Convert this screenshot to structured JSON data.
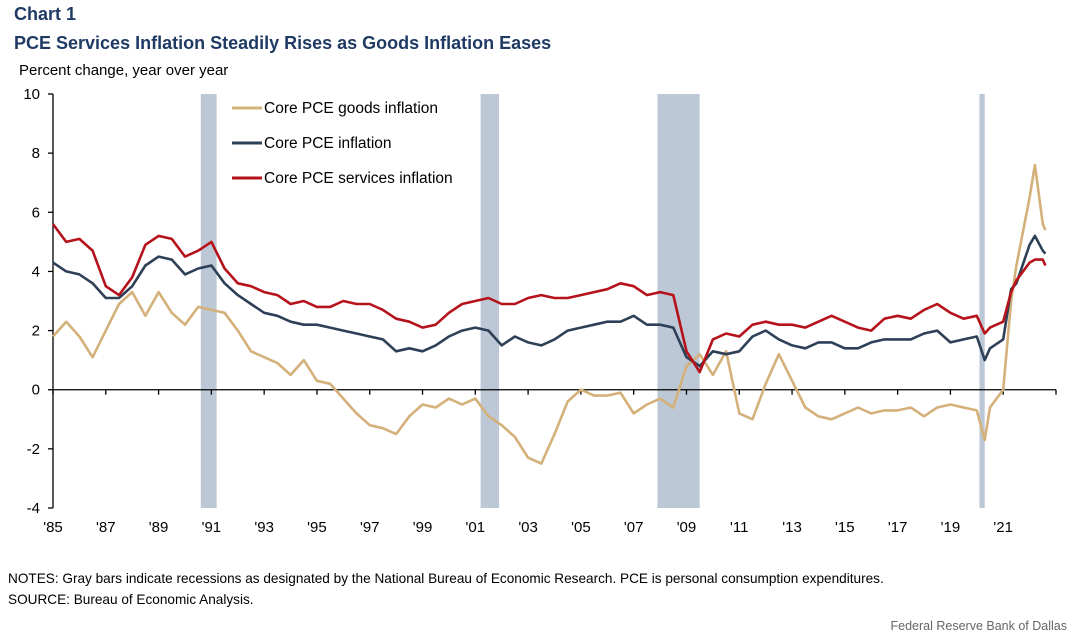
{
  "header": {
    "chart_number": "Chart 1",
    "title": "PCE Services Inflation Steadily Rises as Goods Inflation Eases",
    "unit_label": "Percent change, year over year"
  },
  "footer": {
    "notes": "NOTES: Gray bars indicate recessions as designated by the National Bureau of Economic Research. PCE is personal consumption expenditures.",
    "source": "SOURCE: Bureau of Economic Analysis.",
    "credit": "Federal Reserve Bank of Dallas"
  },
  "chart_data": {
    "type": "line",
    "title": "PCE Services Inflation Steadily Rises as Goods Inflation Eases",
    "xlabel": "",
    "ylabel": "Percent change, year over year",
    "xlim": [
      1985,
      2023
    ],
    "ylim": [
      -4,
      10
    ],
    "y_ticks": [
      10,
      8,
      6,
      4,
      2,
      0,
      -2,
      -4
    ],
    "x_ticks": [
      1985,
      1987,
      1989,
      1991,
      1993,
      1995,
      1997,
      1999,
      2001,
      2003,
      2005,
      2007,
      2009,
      2011,
      2013,
      2015,
      2017,
      2019,
      2021,
      2023
    ],
    "x_tick_labels": [
      "'85",
      "'87",
      "'89",
      "'91",
      "'93",
      "'95",
      "'97",
      "'99",
      "'01",
      "'03",
      "'05",
      "'07",
      "'09",
      "'11",
      "'13",
      "'15",
      "'17",
      "'19",
      "'21",
      ""
    ],
    "grid": false,
    "legend_position": "top-left",
    "recessions": [
      [
        1990.6,
        1991.2
      ],
      [
        2001.2,
        2001.9
      ],
      [
        2007.9,
        2009.5
      ],
      [
        2020.1,
        2020.3
      ]
    ],
    "x": [
      1985.0,
      1985.5,
      1986.0,
      1986.5,
      1987.0,
      1987.5,
      1988.0,
      1988.5,
      1989.0,
      1989.5,
      1990.0,
      1990.5,
      1991.0,
      1991.5,
      1992.0,
      1992.5,
      1993.0,
      1993.5,
      1994.0,
      1994.5,
      1995.0,
      1995.5,
      1996.0,
      1996.5,
      1997.0,
      1997.5,
      1998.0,
      1998.5,
      1999.0,
      1999.5,
      2000.0,
      2000.5,
      2001.0,
      2001.5,
      2002.0,
      2002.5,
      2003.0,
      2003.5,
      2004.0,
      2004.5,
      2005.0,
      2005.5,
      2006.0,
      2006.5,
      2007.0,
      2007.5,
      2008.0,
      2008.5,
      2009.0,
      2009.5,
      2010.0,
      2010.5,
      2011.0,
      2011.5,
      2012.0,
      2012.5,
      2013.0,
      2013.5,
      2014.0,
      2014.5,
      2015.0,
      2015.5,
      2016.0,
      2016.5,
      2017.0,
      2017.5,
      2018.0,
      2018.5,
      2019.0,
      2019.5,
      2020.0,
      2020.3,
      2020.5,
      2021.0,
      2021.3,
      2021.5,
      2022.0,
      2022.2,
      2022.5,
      2022.6
    ],
    "series": [
      {
        "name": "Core PCE goods inflation",
        "color": "#d4b07a",
        "values": [
          1.8,
          2.3,
          1.8,
          1.1,
          2.0,
          2.9,
          3.3,
          2.5,
          3.3,
          2.6,
          2.2,
          2.8,
          2.7,
          2.6,
          2.0,
          1.3,
          1.1,
          0.9,
          0.5,
          1.0,
          0.3,
          0.2,
          -0.3,
          -0.8,
          -1.2,
          -1.3,
          -1.5,
          -0.9,
          -0.5,
          -0.6,
          -0.3,
          -0.5,
          -0.3,
          -0.9,
          -1.2,
          -1.6,
          -2.3,
          -2.5,
          -1.5,
          -0.4,
          0.0,
          -0.2,
          -0.2,
          -0.1,
          -0.8,
          -0.5,
          -0.3,
          -0.6,
          0.8,
          1.2,
          0.5,
          1.3,
          -0.8,
          -1.0,
          0.2,
          1.2,
          0.3,
          -0.6,
          -0.9,
          -1.0,
          -0.8,
          -0.6,
          -0.8,
          -0.7,
          -0.7,
          -0.6,
          -0.9,
          -0.6,
          -0.5,
          -0.6,
          -0.7,
          -1.7,
          -0.6,
          0.0,
          3.0,
          4.2,
          6.5,
          7.6,
          5.6,
          5.4
        ]
      },
      {
        "name": "Core PCE inflation",
        "color": "#2e4057",
        "values": [
          4.3,
          4.0,
          3.9,
          3.6,
          3.1,
          3.1,
          3.5,
          4.2,
          4.5,
          4.4,
          3.9,
          4.1,
          4.2,
          3.6,
          3.2,
          2.9,
          2.6,
          2.5,
          2.3,
          2.2,
          2.2,
          2.1,
          2.0,
          1.9,
          1.8,
          1.7,
          1.3,
          1.4,
          1.3,
          1.5,
          1.8,
          2.0,
          2.1,
          2.0,
          1.5,
          1.8,
          1.6,
          1.5,
          1.7,
          2.0,
          2.1,
          2.2,
          2.3,
          2.3,
          2.5,
          2.2,
          2.2,
          2.1,
          1.1,
          0.8,
          1.3,
          1.2,
          1.3,
          1.8,
          2.0,
          1.7,
          1.5,
          1.4,
          1.6,
          1.6,
          1.4,
          1.4,
          1.6,
          1.7,
          1.7,
          1.7,
          1.9,
          2.0,
          1.6,
          1.7,
          1.8,
          1.0,
          1.4,
          1.7,
          3.4,
          3.6,
          4.9,
          5.2,
          4.7,
          4.6
        ]
      },
      {
        "name": "Core PCE services inflation",
        "color": "#b5121b",
        "values": [
          5.6,
          5.0,
          5.1,
          4.7,
          3.5,
          3.2,
          3.8,
          4.9,
          5.2,
          5.1,
          4.5,
          4.7,
          5.0,
          4.1,
          3.6,
          3.5,
          3.3,
          3.2,
          2.9,
          3.0,
          2.8,
          2.8,
          3.0,
          2.9,
          2.9,
          2.7,
          2.4,
          2.3,
          2.1,
          2.2,
          2.6,
          2.9,
          3.0,
          3.1,
          2.9,
          2.9,
          3.1,
          3.2,
          3.1,
          3.1,
          3.2,
          3.3,
          3.4,
          3.6,
          3.5,
          3.2,
          3.3,
          3.2,
          1.3,
          0.6,
          1.7,
          1.9,
          1.8,
          2.2,
          2.3,
          2.2,
          2.2,
          2.1,
          2.3,
          2.5,
          2.3,
          2.1,
          2.0,
          2.4,
          2.5,
          2.4,
          2.7,
          2.9,
          2.6,
          2.4,
          2.5,
          1.9,
          2.1,
          2.3,
          3.3,
          3.7,
          4.3,
          4.4,
          4.4,
          4.2
        ]
      }
    ]
  }
}
